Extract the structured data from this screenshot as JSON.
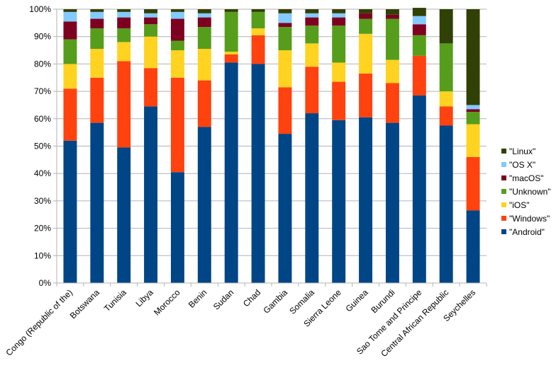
{
  "chart_data": {
    "type": "bar",
    "stacked": true,
    "percent": true,
    "title": "",
    "xlabel": "",
    "ylabel": "",
    "ylim": [
      0,
      100
    ],
    "yticks": [
      "0%",
      "10%",
      "20%",
      "30%",
      "40%",
      "50%",
      "60%",
      "70%",
      "80%",
      "90%",
      "100%"
    ],
    "grid": true,
    "legend_position": "right",
    "categories": [
      "Congo (Republic of the)",
      "Botswana",
      "Tunisia",
      "Libya",
      "Morocco",
      "Benin",
      "Sudan",
      "Chad",
      "Gambia",
      "Somalia",
      "Sierra Leone",
      "Guinea",
      "Burundi",
      "Sao Tome and Principe",
      "Central African Republic",
      "Seychelles"
    ],
    "series": [
      {
        "name": "\"Android\"",
        "color": "#004586",
        "values": [
          52.0,
          58.5,
          49.5,
          64.5,
          40.5,
          57.0,
          80.5,
          80.0,
          54.5,
          62.0,
          59.5,
          60.5,
          58.5,
          68.5,
          57.5,
          26.5
        ]
      },
      {
        "name": "\"Windows\"",
        "color": "#ff420e",
        "values": [
          19.0,
          16.5,
          31.5,
          14.0,
          34.5,
          17.0,
          3.0,
          10.5,
          17.0,
          17.0,
          14.0,
          16.0,
          14.5,
          14.5,
          7.0,
          19.5
        ]
      },
      {
        "name": "\"iOS\"",
        "color": "#ffd320",
        "values": [
          9.0,
          10.5,
          7.0,
          11.5,
          10.0,
          11.5,
          1.0,
          2.5,
          13.5,
          8.5,
          7.0,
          14.5,
          8.5,
          0.0,
          5.5,
          12.0
        ]
      },
      {
        "name": "\"Unknown\"",
        "color": "#579d1c",
        "values": [
          9.0,
          7.5,
          5.0,
          4.5,
          3.5,
          8.0,
          14.5,
          6.0,
          8.5,
          6.5,
          13.5,
          5.5,
          15.0,
          7.5,
          17.5,
          4.5
        ]
      },
      {
        "name": "\"macOS\"",
        "color": "#7e0021",
        "values": [
          6.5,
          3.5,
          4.0,
          2.5,
          8.0,
          3.5,
          0.0,
          0.0,
          1.5,
          3.0,
          3.0,
          2.0,
          1.5,
          4.0,
          0.0,
          1.0
        ]
      },
      {
        "name": "\"OS X\"",
        "color": "#83caff",
        "values": [
          3.5,
          2.5,
          2.0,
          1.5,
          2.5,
          1.5,
          0.0,
          0.0,
          3.5,
          1.5,
          1.5,
          0.0,
          0.0,
          3.0,
          0.0,
          1.5
        ]
      },
      {
        "name": "\"Linux\"",
        "color": "#314004",
        "values": [
          1.0,
          1.0,
          1.0,
          1.5,
          1.0,
          1.5,
          1.0,
          1.0,
          1.5,
          1.5,
          1.5,
          1.5,
          2.0,
          3.0,
          12.5,
          35.0
        ]
      }
    ]
  }
}
